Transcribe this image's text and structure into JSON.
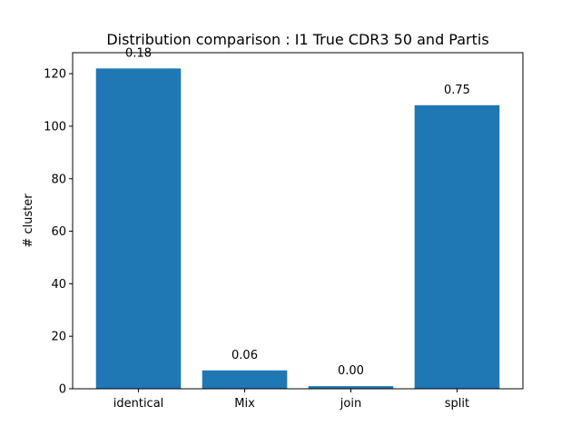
{
  "chart_data": {
    "type": "bar",
    "title": "Distribution comparison : I1 True CDR3 50 and Partis",
    "xlabel": "",
    "ylabel": "# cluster",
    "categories": [
      "identical",
      "Mix",
      "join",
      "split"
    ],
    "values": [
      122,
      7,
      1,
      108
    ],
    "data_labels": [
      "0.18",
      "0.06",
      "0.00",
      "0.75"
    ],
    "ylim": [
      0,
      128
    ],
    "yticks": [
      0,
      20,
      40,
      60,
      80,
      100,
      120
    ],
    "grid": false,
    "legend": "none",
    "bar_color": "#1f77b4"
  }
}
